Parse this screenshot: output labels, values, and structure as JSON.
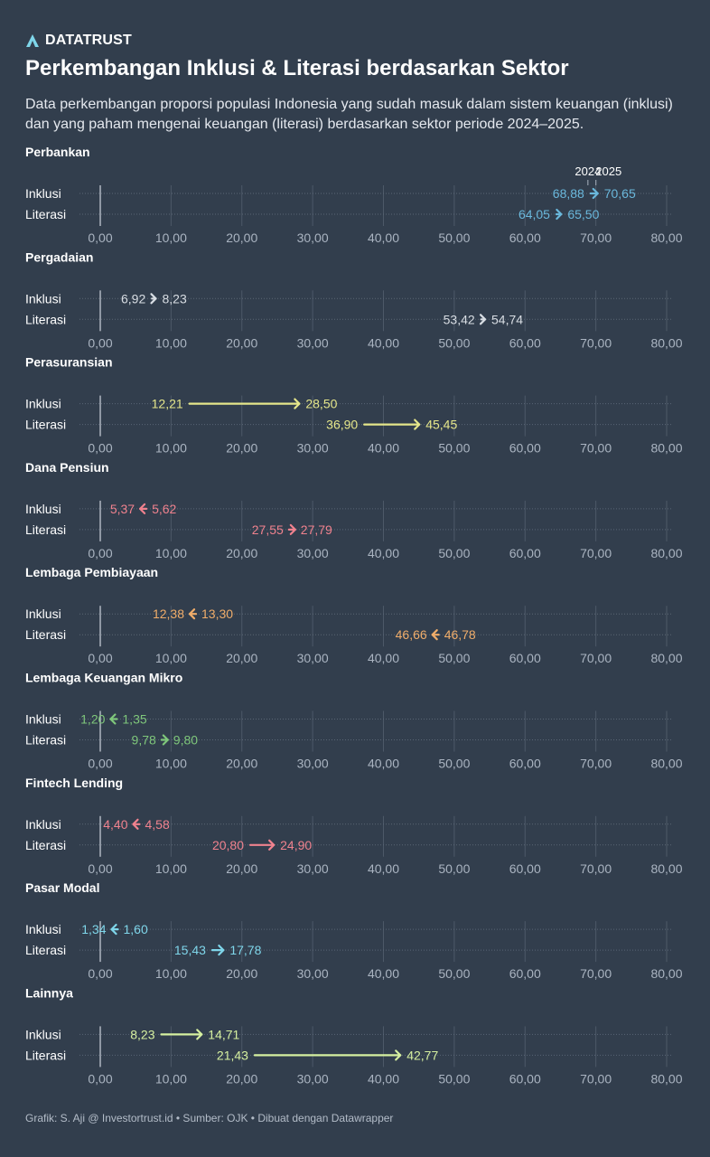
{
  "brand": {
    "name": "DATATRUST",
    "logo_icon": "datatrust-logo-icon"
  },
  "title": "Perkembangan Inklusi & Literasi berdasarkan Sektor",
  "subtitle": "Data perkembangan proporsi populasi Indonesia yang sudah masuk dalam sistem keuangan (inklusi) dan yang paham mengenai keuangan (literasi) berdasarkan sektor periode 2024–2025.",
  "footer": "Grafik: S. Aji @ Investortrust.id • Sumber: OJK • Dibuat dengan Datawrapper",
  "chart_data": {
    "type": "arrow-plot",
    "x_range": [
      0,
      80
    ],
    "x_ticks": [
      "0,00",
      "10,00",
      "20,00",
      "30,00",
      "40,00",
      "50,00",
      "60,00",
      "70,00",
      "80,00"
    ],
    "x_tick_values": [
      0,
      10,
      20,
      30,
      40,
      50,
      60,
      70,
      80
    ],
    "years": [
      "2024",
      "2025"
    ],
    "rows": [
      "Inklusi",
      "Literasi"
    ],
    "grid": true,
    "panels": [
      {
        "name": "Perbankan",
        "color": "#6ab8dc",
        "inklusi": {
          "from": 68.88,
          "to": 70.65,
          "from_label": "68,88",
          "to_label": "70,65"
        },
        "literasi": {
          "from": 64.05,
          "to": 65.5,
          "from_label": "64,05",
          "to_label": "65,50"
        }
      },
      {
        "name": "Pergadaian",
        "color": "#d8dde3",
        "inklusi": {
          "from": 6.92,
          "to": 8.23,
          "from_label": "6,92",
          "to_label": "8,23"
        },
        "literasi": {
          "from": 53.42,
          "to": 54.74,
          "from_label": "53,42",
          "to_label": "54,74"
        }
      },
      {
        "name": "Perasuransian",
        "color": "#e5e68a",
        "inklusi": {
          "from": 12.21,
          "to": 28.5,
          "from_label": "12,21",
          "to_label": "28,50"
        },
        "literasi": {
          "from": 36.9,
          "to": 45.45,
          "from_label": "36,90",
          "to_label": "45,45"
        }
      },
      {
        "name": "Dana Pensiun",
        "color": "#f0828e",
        "inklusi": {
          "from": 5.62,
          "to": 5.37,
          "from_label": "5,62",
          "to_label": "5,37"
        },
        "literasi": {
          "from": 27.55,
          "to": 27.79,
          "from_label": "27,55",
          "to_label": "27,79"
        }
      },
      {
        "name": "Lembaga Pembiayaan",
        "color": "#f0ad6a",
        "inklusi": {
          "from": 13.3,
          "to": 12.38,
          "from_label": "13,30",
          "to_label": "12,38"
        },
        "literasi": {
          "from": 46.78,
          "to": 46.66,
          "from_label": "46,78",
          "to_label": "46,66"
        }
      },
      {
        "name": "Lembaga Keuangan Mikro",
        "color": "#7fc77b",
        "inklusi": {
          "from": 1.35,
          "to": 1.2,
          "from_label": "1,35",
          "to_label": "1,20"
        },
        "literasi": {
          "from": 9.78,
          "to": 9.8,
          "from_label": "9,78",
          "to_label": "9,80"
        }
      },
      {
        "name": "Fintech Lending",
        "color": "#f0828e",
        "inklusi": {
          "from": 4.58,
          "to": 4.4,
          "from_label": "4,58",
          "to_label": "4,40"
        },
        "literasi": {
          "from": 20.8,
          "to": 24.9,
          "from_label": "20,80",
          "to_label": "24,90"
        }
      },
      {
        "name": "Pasar Modal",
        "color": "#7fd6ea",
        "inklusi": {
          "from": 1.6,
          "to": 1.34,
          "from_label": "1,60",
          "to_label": "1,34"
        },
        "literasi": {
          "from": 15.43,
          "to": 17.78,
          "from_label": "15,43",
          "to_label": "17,78"
        }
      },
      {
        "name": "Lainnya",
        "color": "#d6f0a0",
        "inklusi": {
          "from": 8.23,
          "to": 14.71,
          "from_label": "8,23",
          "to_label": "14,71"
        },
        "literasi": {
          "from": 21.43,
          "to": 42.77,
          "from_label": "21,43",
          "to_label": "42,77"
        }
      }
    ]
  }
}
